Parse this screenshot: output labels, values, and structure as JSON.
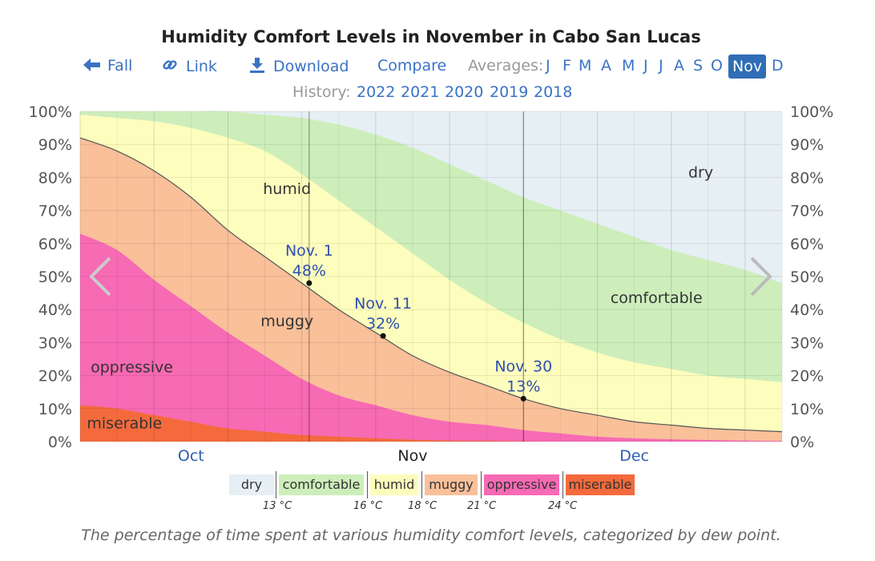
{
  "page": {
    "title": "Humidity Comfort Levels in November in Cabo San Lucas",
    "caption": "The percentage of time spent at various humidity comfort levels, categorized by dew point."
  },
  "nav": {
    "fall": "Fall",
    "link": "Link",
    "download": "Download",
    "compare": "Compare",
    "averages_label": "Averages:",
    "months": [
      "J",
      "F",
      "M",
      "A",
      "M",
      "J",
      "J",
      "A",
      "S",
      "O",
      "Nov",
      "D"
    ],
    "active_month_index": 10,
    "icons": {
      "fall": "left-arrow-icon",
      "link": "link-icon",
      "download": "download-icon"
    }
  },
  "history": {
    "label": "History:",
    "years": [
      "2022",
      "2021",
      "2020",
      "2019",
      "2018"
    ]
  },
  "chart_data": {
    "type": "area",
    "stacking": "cumulative-percent",
    "x_months": [
      "Oct",
      "Nov",
      "Dec"
    ],
    "x_days": [
      0,
      5,
      10,
      15,
      20,
      25,
      30,
      35,
      40,
      45,
      50,
      55,
      60,
      65,
      70,
      75,
      80,
      85,
      90,
      95
    ],
    "x_note": "days from Oct 1",
    "ylim": [
      0,
      100
    ],
    "yticks": [
      "0%",
      "10%",
      "20%",
      "30%",
      "40%",
      "50%",
      "60%",
      "70%",
      "80%",
      "90%",
      "100%"
    ],
    "grid": true,
    "series": [
      {
        "name": "miserable",
        "color": "#f46a3c",
        "values": [
          11,
          10,
          8,
          6,
          4,
          3,
          2,
          1.5,
          1,
          0.6,
          0.3,
          0.2,
          0.1,
          0,
          0,
          0,
          0,
          0,
          0,
          0
        ]
      },
      {
        "name": "oppressive",
        "color": "#f76ab4",
        "values": [
          63,
          58,
          49,
          41,
          33,
          26,
          19,
          14,
          11,
          8,
          6,
          5,
          3.5,
          2.5,
          1.5,
          1,
          0.7,
          0.5,
          0.3,
          0.2
        ]
      },
      {
        "name": "muggy",
        "color": "#f9c09a",
        "values": [
          92,
          88,
          82,
          74,
          64,
          56,
          48,
          40,
          33,
          26,
          21,
          17,
          13,
          10,
          8,
          6,
          5,
          4,
          3.5,
          3
        ]
      },
      {
        "name": "humid",
        "color": "#fdfdbd",
        "values": [
          99,
          98,
          97,
          95,
          92,
          88,
          81,
          73,
          65,
          57,
          49,
          42,
          36,
          31,
          27,
          24,
          22,
          20,
          19,
          18
        ]
      },
      {
        "name": "comfortable",
        "color": "#cdeebb",
        "values": [
          100,
          100,
          100,
          100,
          100,
          99,
          98,
          96,
          93,
          89,
          84,
          79,
          74,
          70,
          66,
          62,
          58,
          55,
          52,
          48
        ]
      },
      {
        "name": "dry",
        "color": "#e6eff4",
        "values": [
          100,
          100,
          100,
          100,
          100,
          100,
          100,
          100,
          100,
          100,
          100,
          100,
          100,
          100,
          100,
          100,
          100,
          100,
          100,
          100
        ]
      }
    ],
    "boundary_line_series": "muggy",
    "annotations": [
      {
        "date": "Nov. 1",
        "day": 31,
        "value": 48,
        "label": "48%"
      },
      {
        "date": "Nov. 11",
        "day": 41,
        "value": 32,
        "label": "32%"
      },
      {
        "date": "Nov. 30",
        "day": 60,
        "value": 13,
        "label": "13%"
      }
    ],
    "area_labels": [
      {
        "text": "dry",
        "day": 84,
        "value": 80
      },
      {
        "text": "comfortable",
        "day": 78,
        "value": 42
      },
      {
        "text": "humid",
        "day": 28,
        "value": 75
      },
      {
        "text": "muggy",
        "day": 28,
        "value": 35
      },
      {
        "text": "oppressive",
        "day": 7,
        "value": 21
      },
      {
        "text": "miserable",
        "day": 6,
        "value": 4
      }
    ],
    "highlight_range_days": [
      31,
      60
    ]
  },
  "legend": {
    "items": [
      {
        "label": "dry",
        "color": "#e6eff4"
      },
      {
        "label": "comfortable",
        "color": "#cdeebb"
      },
      {
        "label": "humid",
        "color": "#fdfdbd"
      },
      {
        "label": "muggy",
        "color": "#f9c09a"
      },
      {
        "label": "oppressive",
        "color": "#f76ab4"
      },
      {
        "label": "miserable",
        "color": "#f46a3c"
      }
    ],
    "thresholds": [
      "13 °C",
      "16 °C",
      "18 °C",
      "21 °C",
      "24 °C"
    ]
  }
}
